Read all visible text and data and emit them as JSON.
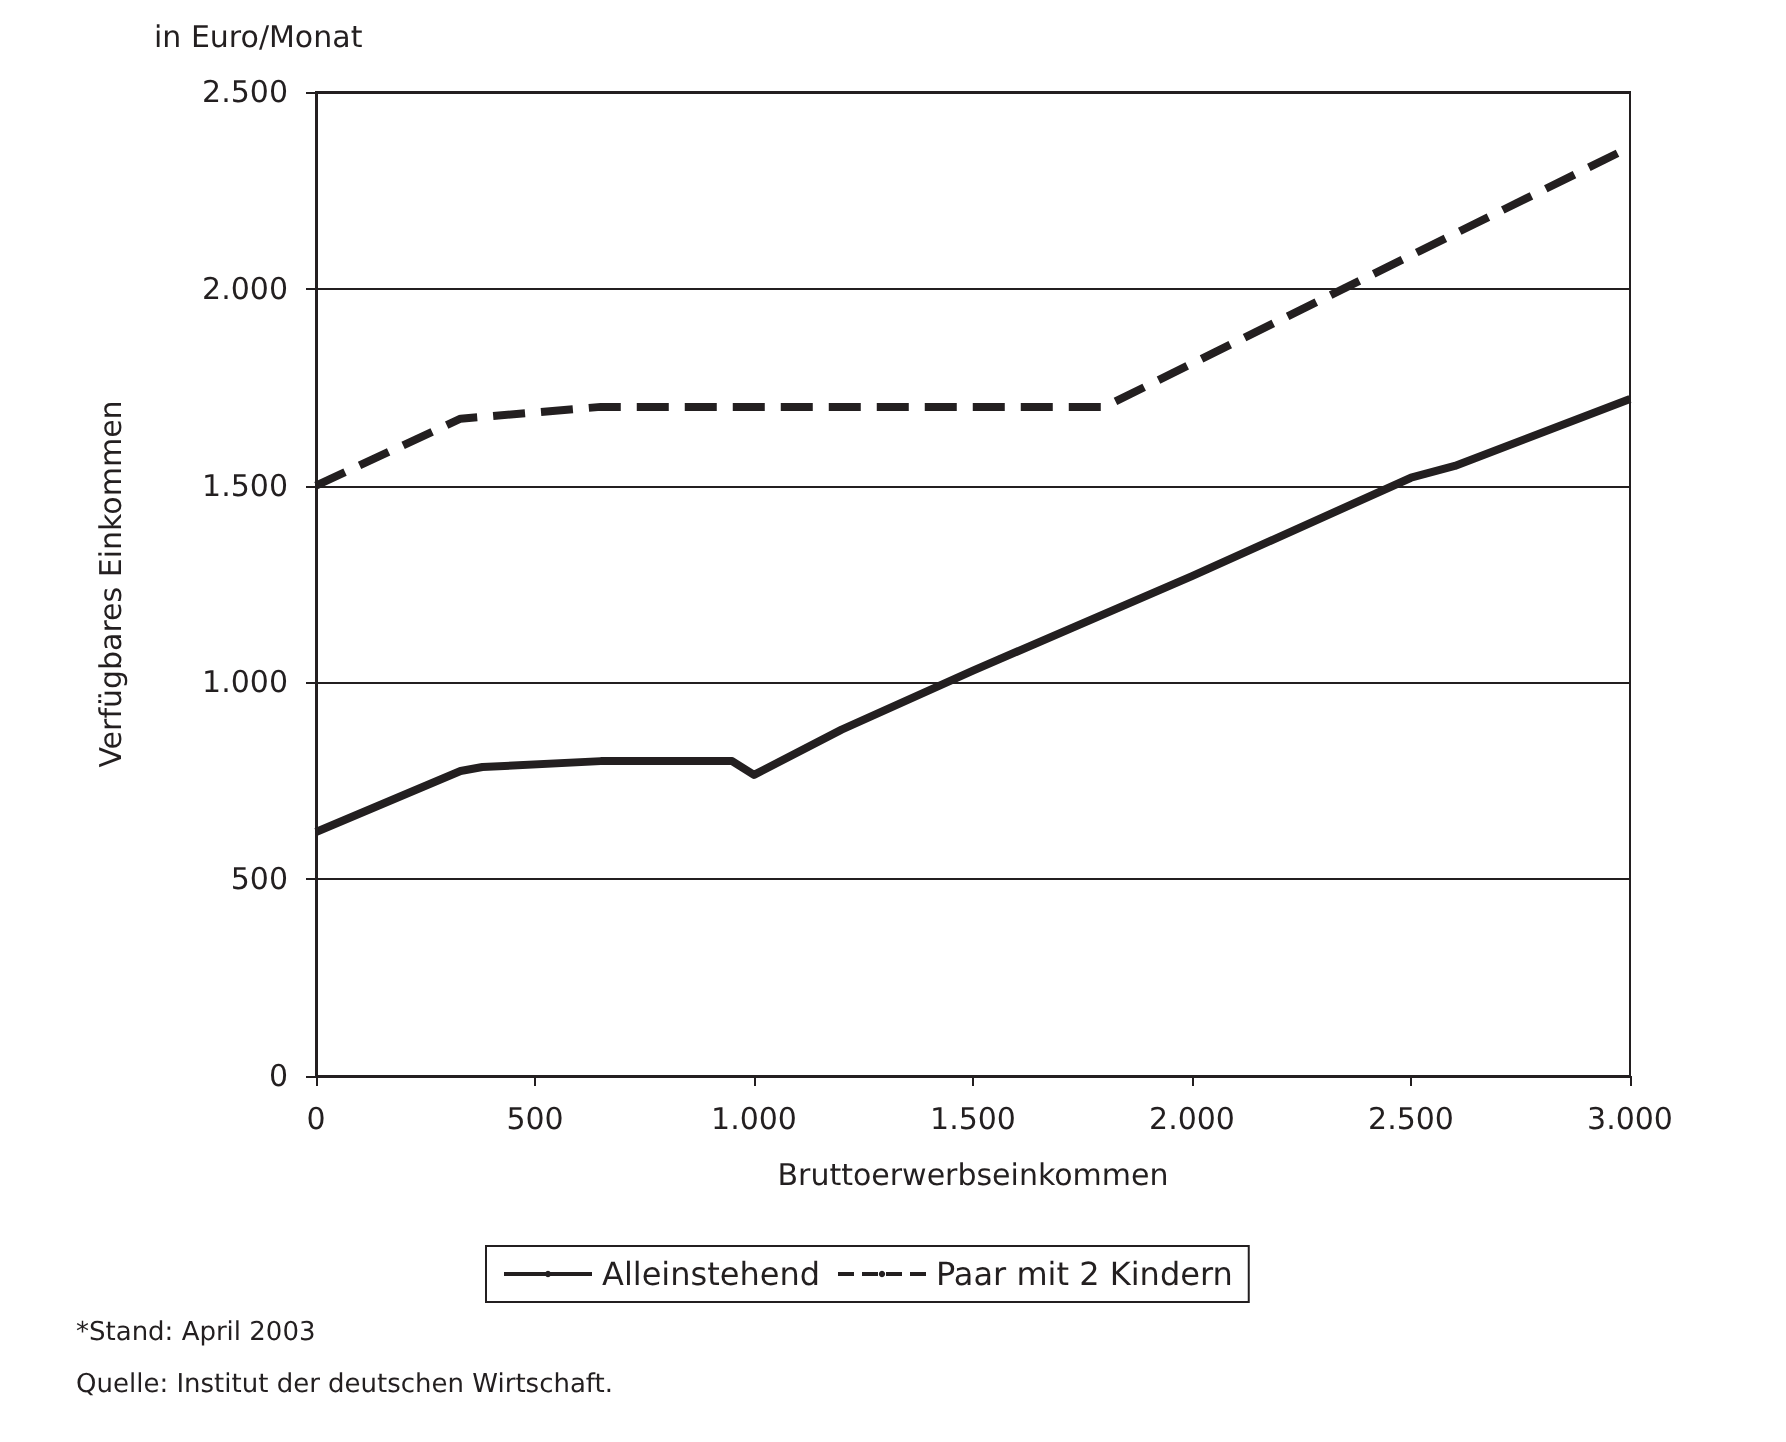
{
  "chart_data": {
    "type": "line",
    "subtitle": "in Euro/Monat",
    "xlabel": "Bruttoerwerbseinkommen",
    "ylabel": "Verfügbares Einkommen",
    "xlim": [
      0,
      3000
    ],
    "xticks": [
      {
        "value": 0,
        "label": "0"
      },
      {
        "value": 500,
        "label": "500"
      },
      {
        "value": 1000,
        "label": "1.000"
      },
      {
        "value": 1500,
        "label": "1.500"
      },
      {
        "value": 2000,
        "label": "2.000"
      },
      {
        "value": 2500,
        "label": "2.500"
      },
      {
        "value": 3000,
        "label": "3.000"
      }
    ],
    "ylim": [
      0,
      2500
    ],
    "yticks": [
      {
        "value": 0,
        "label": "0"
      },
      {
        "value": 500,
        "label": "500"
      },
      {
        "value": 1000,
        "label": "1.000"
      },
      {
        "value": 1500,
        "label": "1.500"
      },
      {
        "value": 2000,
        "label": "2.000"
      },
      {
        "value": 2500,
        "label": "2.500"
      }
    ],
    "grid": "y",
    "legend": "bottom",
    "marker": "none",
    "series": [
      {
        "name": "Alleinstehend",
        "color": "#231f20",
        "line_style": "solid",
        "x": [
          0,
          330,
          380,
          650,
          950,
          1000,
          1200,
          1500,
          2000,
          2500,
          2600,
          3000
        ],
        "values": [
          620,
          775,
          785,
          800,
          800,
          765,
          880,
          1030,
          1270,
          1520,
          1550,
          1720
        ]
      },
      {
        "name": "Paar mit 2 Kindern",
        "color": "#231f20",
        "line_style": "dashed",
        "x": [
          0,
          330,
          650,
          1800,
          3000
        ],
        "values": [
          1500,
          1670,
          1700,
          1700,
          2360
        ]
      }
    ],
    "annotations": [
      "*Stand: April 2003",
      "Quelle: Institut der deutschen Wirtschaft."
    ]
  }
}
